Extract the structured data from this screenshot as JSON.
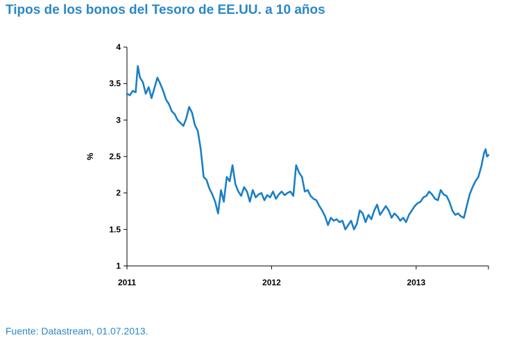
{
  "header": {
    "title": "Tipos de los bonos del Tesoro de EE.UU. a 10 años"
  },
  "footer": {
    "source": "Fuente: Datastream, 01.07.2013."
  },
  "colors": {
    "title": "#2a87c8",
    "line": "#1a7fc6",
    "axis": "#000000"
  },
  "chart_data": {
    "type": "line",
    "title": "Tipos de los bonos del Tesoro de EE.UU. a 10 años",
    "xlabel": "",
    "ylabel": "%",
    "ylim": [
      1,
      4
    ],
    "xlim": [
      2011.0,
      2013.5
    ],
    "yticks": [
      1,
      1.5,
      2,
      2.5,
      3,
      3.5,
      4
    ],
    "yticklabels": [
      "1",
      "1.5",
      "2",
      "2.5",
      "3",
      "3.5",
      "4"
    ],
    "xticks": [
      2011,
      2012,
      2013
    ],
    "xticklabels": [
      "2011",
      "2012",
      "2013"
    ],
    "grid": false,
    "legend": "none",
    "series": [
      {
        "x": [
          2011.0,
          2011.02,
          2011.04,
          2011.06,
          2011.075,
          2011.09,
          2011.11,
          2011.13,
          2011.15,
          2011.17,
          2011.19,
          2011.21,
          2011.23,
          2011.25,
          2011.27,
          2011.29,
          2011.31,
          2011.33,
          2011.35,
          2011.37,
          2011.39,
          2011.41,
          2011.43,
          2011.45,
          2011.47,
          2011.49,
          2011.51,
          2011.53,
          2011.55,
          2011.57,
          2011.59,
          2011.61,
          2011.63,
          2011.65,
          2011.67,
          2011.69,
          2011.71,
          2011.73,
          2011.75,
          2011.77,
          2011.79,
          2011.81,
          2011.83,
          2011.85,
          2011.87,
          2011.89,
          2011.91,
          2011.93,
          2011.95,
          2011.97,
          2011.99,
          2012.01,
          2012.03,
          2012.05,
          2012.07,
          2012.09,
          2012.11,
          2012.13,
          2012.15,
          2012.17,
          2012.19,
          2012.21,
          2012.23,
          2012.25,
          2012.27,
          2012.29,
          2012.31,
          2012.33,
          2012.35,
          2012.37,
          2012.39,
          2012.41,
          2012.43,
          2012.45,
          2012.47,
          2012.49,
          2012.51,
          2012.53,
          2012.55,
          2012.57,
          2012.59,
          2012.61,
          2012.63,
          2012.65,
          2012.67,
          2012.69,
          2012.71,
          2012.73,
          2012.75,
          2012.77,
          2012.79,
          2012.81,
          2012.83,
          2012.85,
          2012.87,
          2012.89,
          2012.91,
          2012.93,
          2012.95,
          2012.97,
          2012.99,
          2013.01,
          2013.03,
          2013.05,
          2013.07,
          2013.09,
          2013.11,
          2013.13,
          2013.15,
          2013.17,
          2013.19,
          2013.21,
          2013.23,
          2013.25,
          2013.27,
          2013.29,
          2013.31,
          2013.33,
          2013.35,
          2013.37,
          2013.39,
          2013.41,
          2013.43,
          2013.45,
          2013.47,
          2013.48,
          2013.49,
          2013.5
        ],
        "values": [
          3.36,
          3.34,
          3.4,
          3.38,
          3.74,
          3.58,
          3.52,
          3.36,
          3.45,
          3.3,
          3.44,
          3.58,
          3.5,
          3.4,
          3.28,
          3.22,
          3.12,
          3.08,
          3.0,
          2.96,
          2.92,
          3.02,
          3.18,
          3.1,
          2.93,
          2.85,
          2.6,
          2.22,
          2.18,
          2.06,
          1.98,
          1.88,
          1.72,
          2.04,
          1.88,
          2.22,
          2.16,
          2.38,
          2.12,
          2.02,
          1.96,
          2.08,
          2.02,
          1.88,
          2.04,
          1.94,
          1.98,
          2.0,
          1.9,
          1.97,
          1.94,
          2.02,
          1.92,
          1.98,
          2.02,
          1.97,
          2.0,
          2.02,
          1.96,
          2.38,
          2.28,
          2.22,
          2.02,
          2.04,
          1.96,
          1.92,
          1.9,
          1.82,
          1.76,
          1.68,
          1.56,
          1.66,
          1.62,
          1.64,
          1.6,
          1.62,
          1.5,
          1.56,
          1.62,
          1.5,
          1.58,
          1.76,
          1.72,
          1.6,
          1.7,
          1.64,
          1.76,
          1.84,
          1.7,
          1.76,
          1.82,
          1.76,
          1.66,
          1.72,
          1.68,
          1.62,
          1.66,
          1.6,
          1.7,
          1.76,
          1.82,
          1.86,
          1.88,
          1.94,
          1.96,
          2.02,
          1.98,
          1.92,
          1.9,
          2.04,
          1.98,
          1.96,
          1.88,
          1.76,
          1.7,
          1.72,
          1.68,
          1.66,
          1.82,
          1.98,
          2.08,
          2.16,
          2.22,
          2.36,
          2.55,
          2.6,
          2.5,
          2.52
        ]
      }
    ]
  }
}
